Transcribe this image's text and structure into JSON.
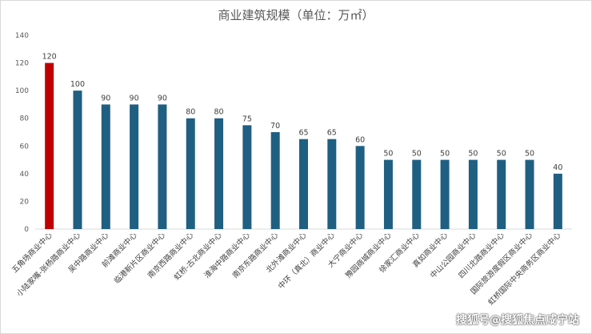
{
  "chart_data": {
    "type": "bar",
    "title": "商业建筑规模（单位：万㎡）",
    "xlabel": "",
    "ylabel": "",
    "ylim": [
      0,
      140
    ],
    "yticks": [
      0,
      20,
      40,
      60,
      80,
      100,
      120,
      140
    ],
    "grid": false,
    "categories": [
      "五角场商业中心",
      "小陆家嘴-张杨路商业中心",
      "吴中路商业中心",
      "前滩商业中心",
      "临港新片区商业中心",
      "南京西路商业中心",
      "虹桥-古北商业中心",
      "淮海中路商业中心",
      "南京东路商业中心",
      "北外滩商业中心",
      "中环（真北）商业中心",
      "大宁商业中心",
      "豫园商城商业中心",
      "徐家汇商业中心",
      "真如商业中心",
      "中山公园商业中心",
      "四川北路商业中心",
      "国际旅游度假区商业中心",
      "虹桥国际中央商务区商业中心"
    ],
    "values": [
      120,
      100,
      90,
      90,
      90,
      80,
      80,
      75,
      70,
      65,
      65,
      60,
      50,
      50,
      50,
      50,
      50,
      50,
      40
    ],
    "colors": {
      "highlight": "#c00000",
      "default": "#1f5f82"
    },
    "highlight_index": 0
  },
  "watermark": "搜狐号@搜狐焦点咸宁站"
}
